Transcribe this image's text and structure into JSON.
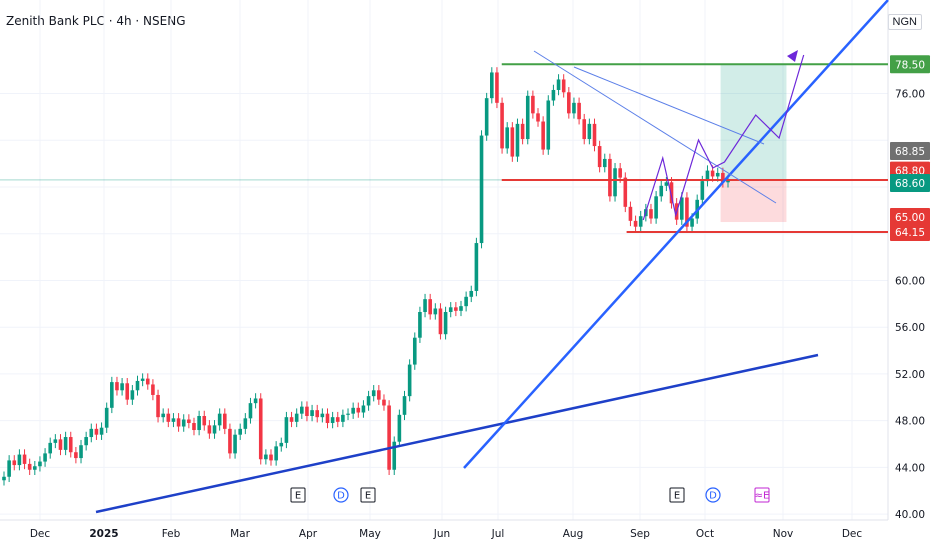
{
  "header": {
    "title": "Zenith Bank PLC · 4h · NSENG",
    "currency": "NGN"
  },
  "chart_data": {
    "type": "candlestick",
    "x_axis": {
      "ticks": [
        "Dec",
        "2025",
        "Feb",
        "Mar",
        "Apr",
        "May",
        "Jun",
        "Jul",
        "Aug",
        "Sep",
        "Oct",
        "Nov",
        "Dec"
      ]
    },
    "y_axis": {
      "ticks": [
        40.0,
        44.0,
        48.0,
        52.0,
        56.0,
        60.0,
        76.0
      ],
      "range": [
        39.5,
        84
      ]
    },
    "price_labels": [
      {
        "value": 78.5,
        "text": "78.50",
        "color": "#43a047"
      },
      {
        "value": 68.85,
        "text": "68.85",
        "color": "#707070"
      },
      {
        "value": 68.8,
        "text": "68.80",
        "color": "#e53935"
      },
      {
        "value": 68.6,
        "text": "68.60",
        "color": "#089981"
      },
      {
        "value": 65.0,
        "text": "65.00",
        "color": "#e53935"
      },
      {
        "value": 64.15,
        "text": "64.15",
        "color": "#e53935"
      }
    ],
    "levels": [
      {
        "value": 78.5,
        "color": "#43a047",
        "from": "Jul",
        "to": "end"
      },
      {
        "value": 68.6,
        "color": "#e53935",
        "from": "Jul",
        "to": "end"
      },
      {
        "value": 64.15,
        "color": "#e53935",
        "from": "Sep",
        "to": "end"
      }
    ],
    "prices": [
      43.2,
      44.6,
      44.2,
      45.1,
      44.3,
      43.8,
      44.1,
      44.5,
      45.2,
      46.1,
      46.4,
      45.5,
      46.6,
      45.3,
      44.8,
      45.9,
      46.6,
      47.3,
      46.8,
      47.4,
      49.1,
      51.3,
      50.6,
      51.2,
      49.8,
      50.6,
      51.4,
      51.6,
      51.1,
      50.2,
      48.3,
      48.6,
      47.9,
      48.2,
      47.5,
      48.1,
      47.8,
      47.2,
      48.4,
      47.6,
      46.9,
      47.6,
      48.6,
      47.3,
      45.2,
      46.8,
      47.3,
      48.2,
      49.5,
      49.9,
      44.7,
      45.1,
      44.6,
      45.8,
      46.1,
      48.3,
      47.9,
      48.6,
      49.2,
      48.4,
      48.9,
      48.3,
      48.6,
      47.8,
      48.3,
      47.9,
      48.5,
      48.6,
      49.1,
      48.7,
      49.3,
      50.1,
      50.6,
      49.8,
      49.3,
      43.8,
      46.2,
      48.5,
      50.1,
      52.8,
      55.1,
      57.3,
      58.4,
      57.1,
      57.6,
      55.4,
      57.3,
      57.7,
      57.4,
      57.8,
      58.6,
      59.1,
      63.2,
      72.4,
      75.6,
      77.8,
      75.2,
      71.3,
      73.1,
      70.6,
      73.4,
      72.1,
      75.8,
      74.3,
      73.6,
      71.2,
      75.4,
      76.3,
      77.2,
      76.1,
      74.3,
      75.2,
      73.8,
      72.1,
      73.4,
      71.5,
      69.7,
      70.4,
      67.2,
      69.6,
      68.8,
      66.3,
      65.1,
      64.6,
      65.5,
      66.1,
      65.3,
      67.2,
      68.1,
      68.4,
      66.6,
      65.2,
      67.1,
      64.6,
      65.3,
      66.9,
      68.5,
      69.4,
      68.9,
      69.2,
      68.4,
      68.6
    ],
    "events": [
      {
        "label": "E",
        "shape": "square",
        "color": "#131722"
      },
      {
        "label": "D",
        "shape": "circle",
        "color": "#2962ff"
      },
      {
        "label": "E",
        "shape": "square",
        "color": "#131722"
      },
      {
        "label": "E",
        "shape": "square",
        "color": "#131722"
      },
      {
        "label": "D",
        "shape": "circle",
        "color": "#2962ff"
      },
      {
        "label": "≈E",
        "shape": "square",
        "color": "#c026d3"
      }
    ]
  }
}
